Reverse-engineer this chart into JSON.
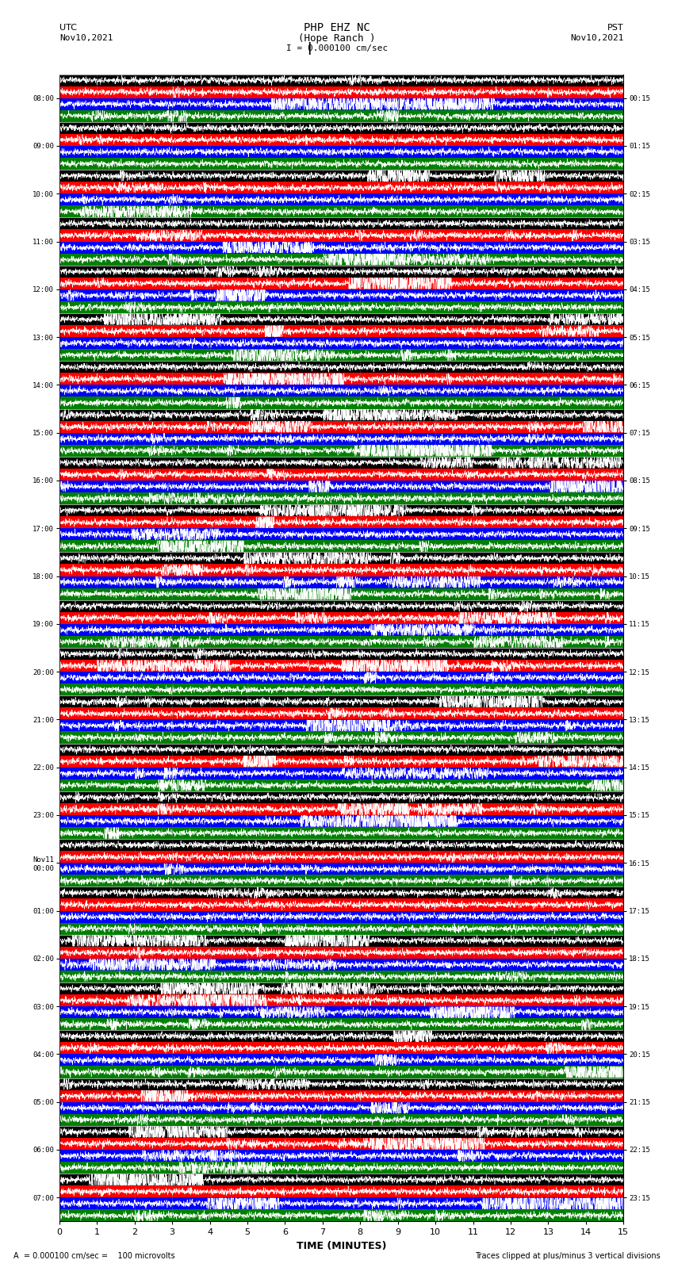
{
  "title_line1": "PHP EHZ NC",
  "title_line2": "(Hope Ranch )",
  "title_scale": "I = 0.000100 cm/sec",
  "label_utc": "UTC",
  "label_pst": "PST",
  "date_left": "Nov10,2021",
  "date_right": "Nov10,2021",
  "xlabel": "TIME (MINUTES)",
  "footer_left": "A  = 0.000100 cm/sec =    100 microvolts",
  "footer_right": "Traces clipped at plus/minus 3 vertical divisions",
  "left_times": [
    "08:00",
    "09:00",
    "10:00",
    "11:00",
    "12:00",
    "13:00",
    "14:00",
    "15:00",
    "16:00",
    "17:00",
    "18:00",
    "19:00",
    "20:00",
    "21:00",
    "22:00",
    "23:00",
    "Nov11\n00:00",
    "01:00",
    "02:00",
    "03:00",
    "04:00",
    "05:00",
    "06:00",
    "07:00"
  ],
  "right_times": [
    "00:15",
    "01:15",
    "02:15",
    "03:15",
    "04:15",
    "05:15",
    "06:15",
    "07:15",
    "08:15",
    "09:15",
    "10:15",
    "11:15",
    "12:15",
    "13:15",
    "14:15",
    "15:15",
    "16:15",
    "17:15",
    "18:15",
    "19:15",
    "20:15",
    "21:15",
    "22:15",
    "23:15"
  ],
  "n_rows": 24,
  "n_minutes": 15,
  "band_colors": [
    "black",
    "red",
    "blue",
    "green"
  ],
  "trace_color": "white",
  "bg_color": "white",
  "xmin": 0,
  "xmax": 15,
  "figwidth": 8.5,
  "figheight": 16.13,
  "dpi": 100,
  "n_bands": 4,
  "samples_per_minute": 200
}
